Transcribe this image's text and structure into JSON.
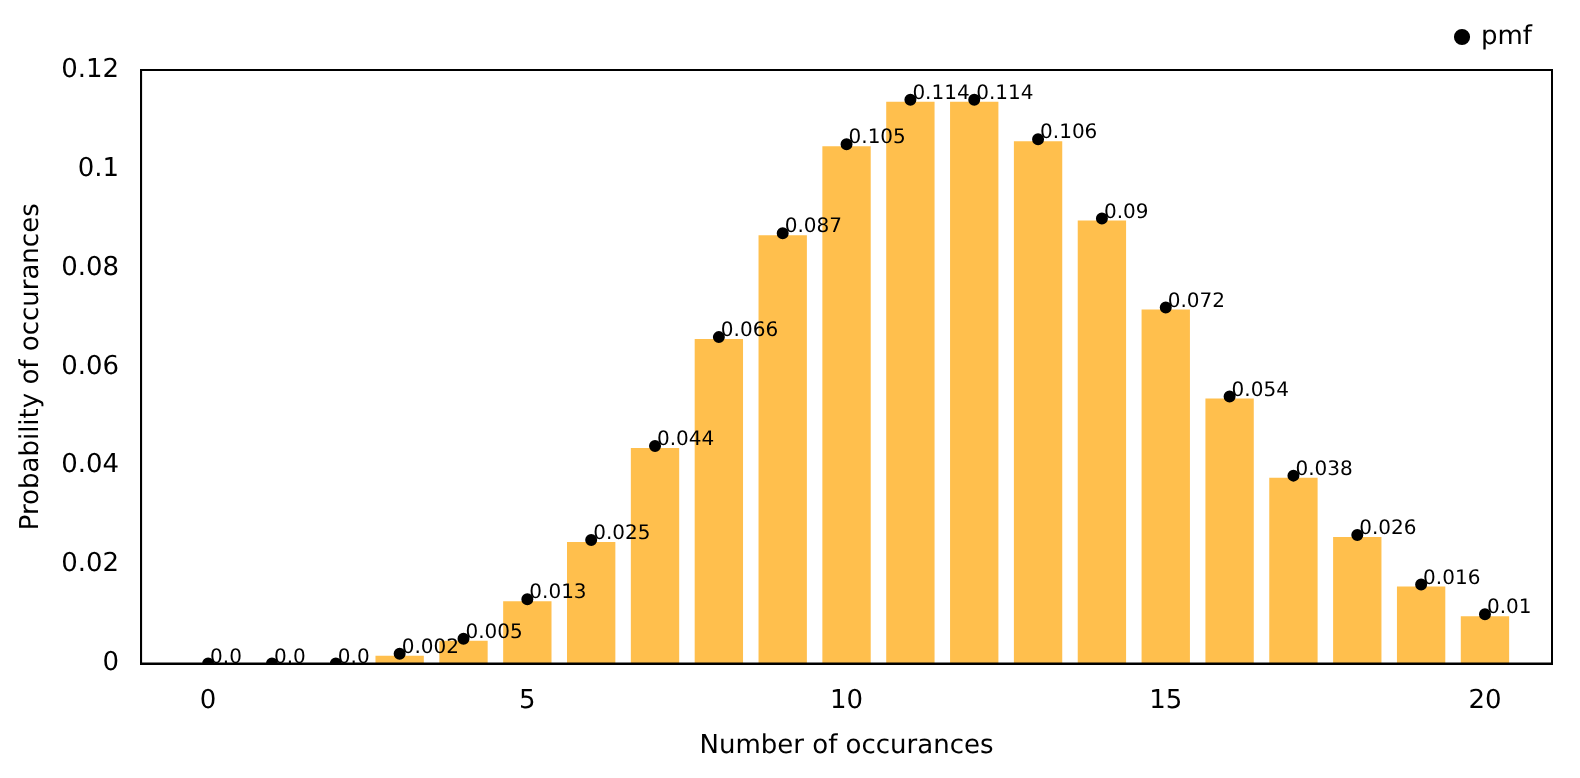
{
  "chart_data": {
    "type": "bar",
    "xlabel": "Number of occurances",
    "ylabel": "Probability of occurances",
    "x": [
      0,
      1,
      2,
      3,
      4,
      5,
      6,
      7,
      8,
      9,
      10,
      11,
      12,
      13,
      14,
      15,
      16,
      17,
      18,
      19,
      20
    ],
    "xlim": [
      -1.05,
      21.05
    ],
    "xticks": [
      0,
      5,
      10,
      15,
      20
    ],
    "ylim": [
      0,
      0.12
    ],
    "yticks": [
      0,
      0.02,
      0.04,
      0.06,
      0.08,
      0.1,
      0.12
    ],
    "series": [
      {
        "color": "#ffbf4d",
        "values": [
          0.0,
          0.0,
          0.0,
          0.002,
          0.005,
          0.013,
          0.025,
          0.044,
          0.066,
          0.087,
          0.105,
          0.114,
          0.114,
          0.106,
          0.09,
          0.072,
          0.054,
          0.038,
          0.026,
          0.016,
          0.01
        ]
      },
      {
        "type": "scatter",
        "name": "pmf",
        "color": "#000000",
        "values": [
          0.0,
          0.0,
          0.0,
          0.002,
          0.005,
          0.013,
          0.025,
          0.044,
          0.066,
          0.087,
          0.105,
          0.114,
          0.114,
          0.106,
          0.09,
          0.072,
          0.054,
          0.038,
          0.026,
          0.016,
          0.01
        ],
        "value_labels": [
          "0.0",
          "0.0",
          "0.0",
          "0.002",
          "0.005",
          "0.013",
          "0.025",
          "0.044",
          "0.066",
          "0.087",
          "0.105",
          "0.114",
          "0.114",
          "0.106",
          "0.09",
          "0.072",
          "0.054",
          "0.038",
          "0.026",
          "0.016",
          "0.01"
        ]
      }
    ],
    "grid": false,
    "legend": "top right",
    "marker": "circle"
  }
}
